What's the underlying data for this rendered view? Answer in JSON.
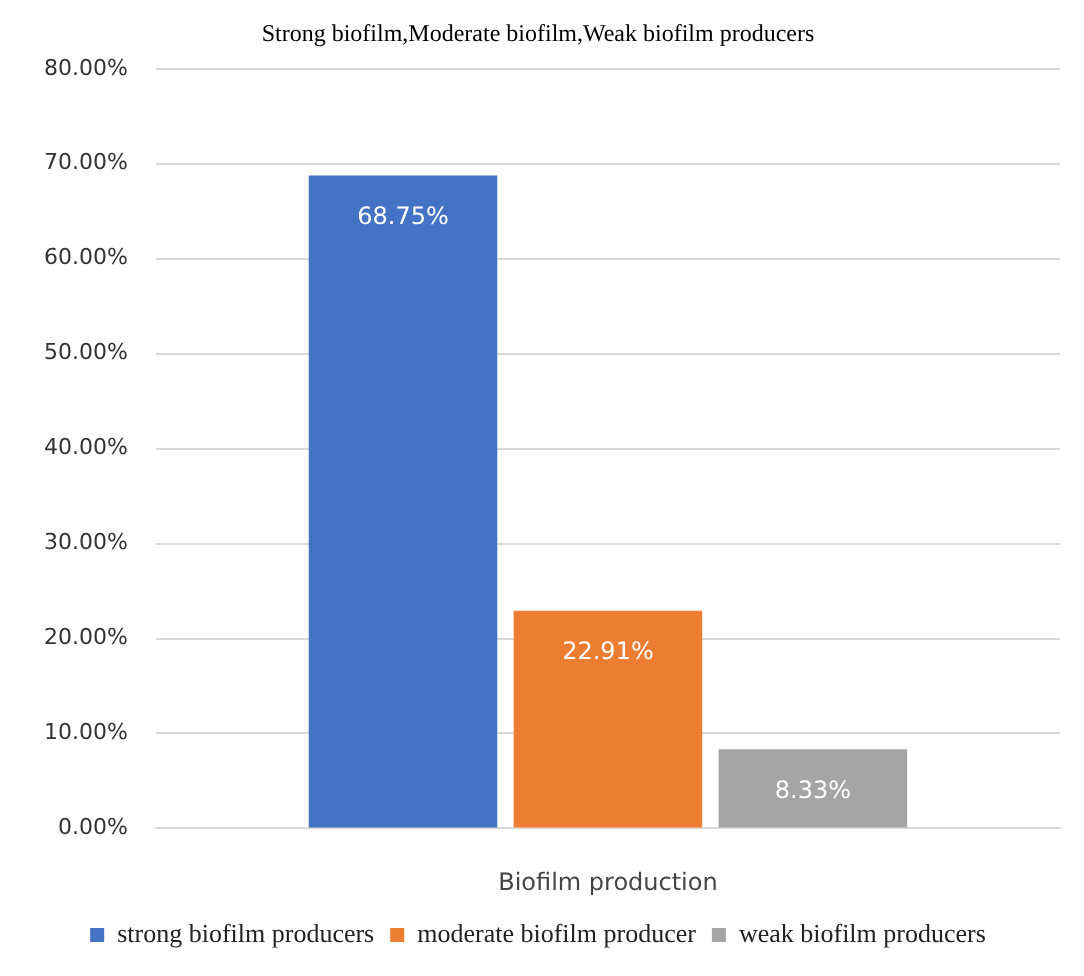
{
  "chart_data": {
    "type": "bar",
    "title": "Strong biofilm,Moderate biofilm,Weak biofilm producers",
    "xlabel": "Biofilm production",
    "categories": [
      null
    ],
    "series": [
      {
        "name": "strong biofilm producers",
        "color": "#4472c4",
        "values": [
          68.75
        ],
        "value_labels": [
          "68.75%"
        ]
      },
      {
        "name": "moderate biofilm producer",
        "color": "#ed7d31",
        "values": [
          22.91
        ],
        "value_labels": [
          "22.91%"
        ]
      },
      {
        "name": "weak biofilm producers",
        "color": "#a5a5a5",
        "values": [
          8.33
        ],
        "value_labels": [
          "8.33%"
        ]
      }
    ],
    "ylim": [
      0,
      80
    ],
    "yticks": [
      {
        "value": 0,
        "label": "0.00%"
      },
      {
        "value": 10,
        "label": "10.00%"
      },
      {
        "value": 20,
        "label": "20.00%"
      },
      {
        "value": 30,
        "label": "30.00%"
      },
      {
        "value": 40,
        "label": "40.00%"
      },
      {
        "value": 50,
        "label": "50.00%"
      },
      {
        "value": 60,
        "label": "60.00%"
      },
      {
        "value": 70,
        "label": "70.00%"
      },
      {
        "value": 80,
        "label": "80.00%"
      }
    ],
    "grid": "y",
    "legend": "bottom"
  }
}
